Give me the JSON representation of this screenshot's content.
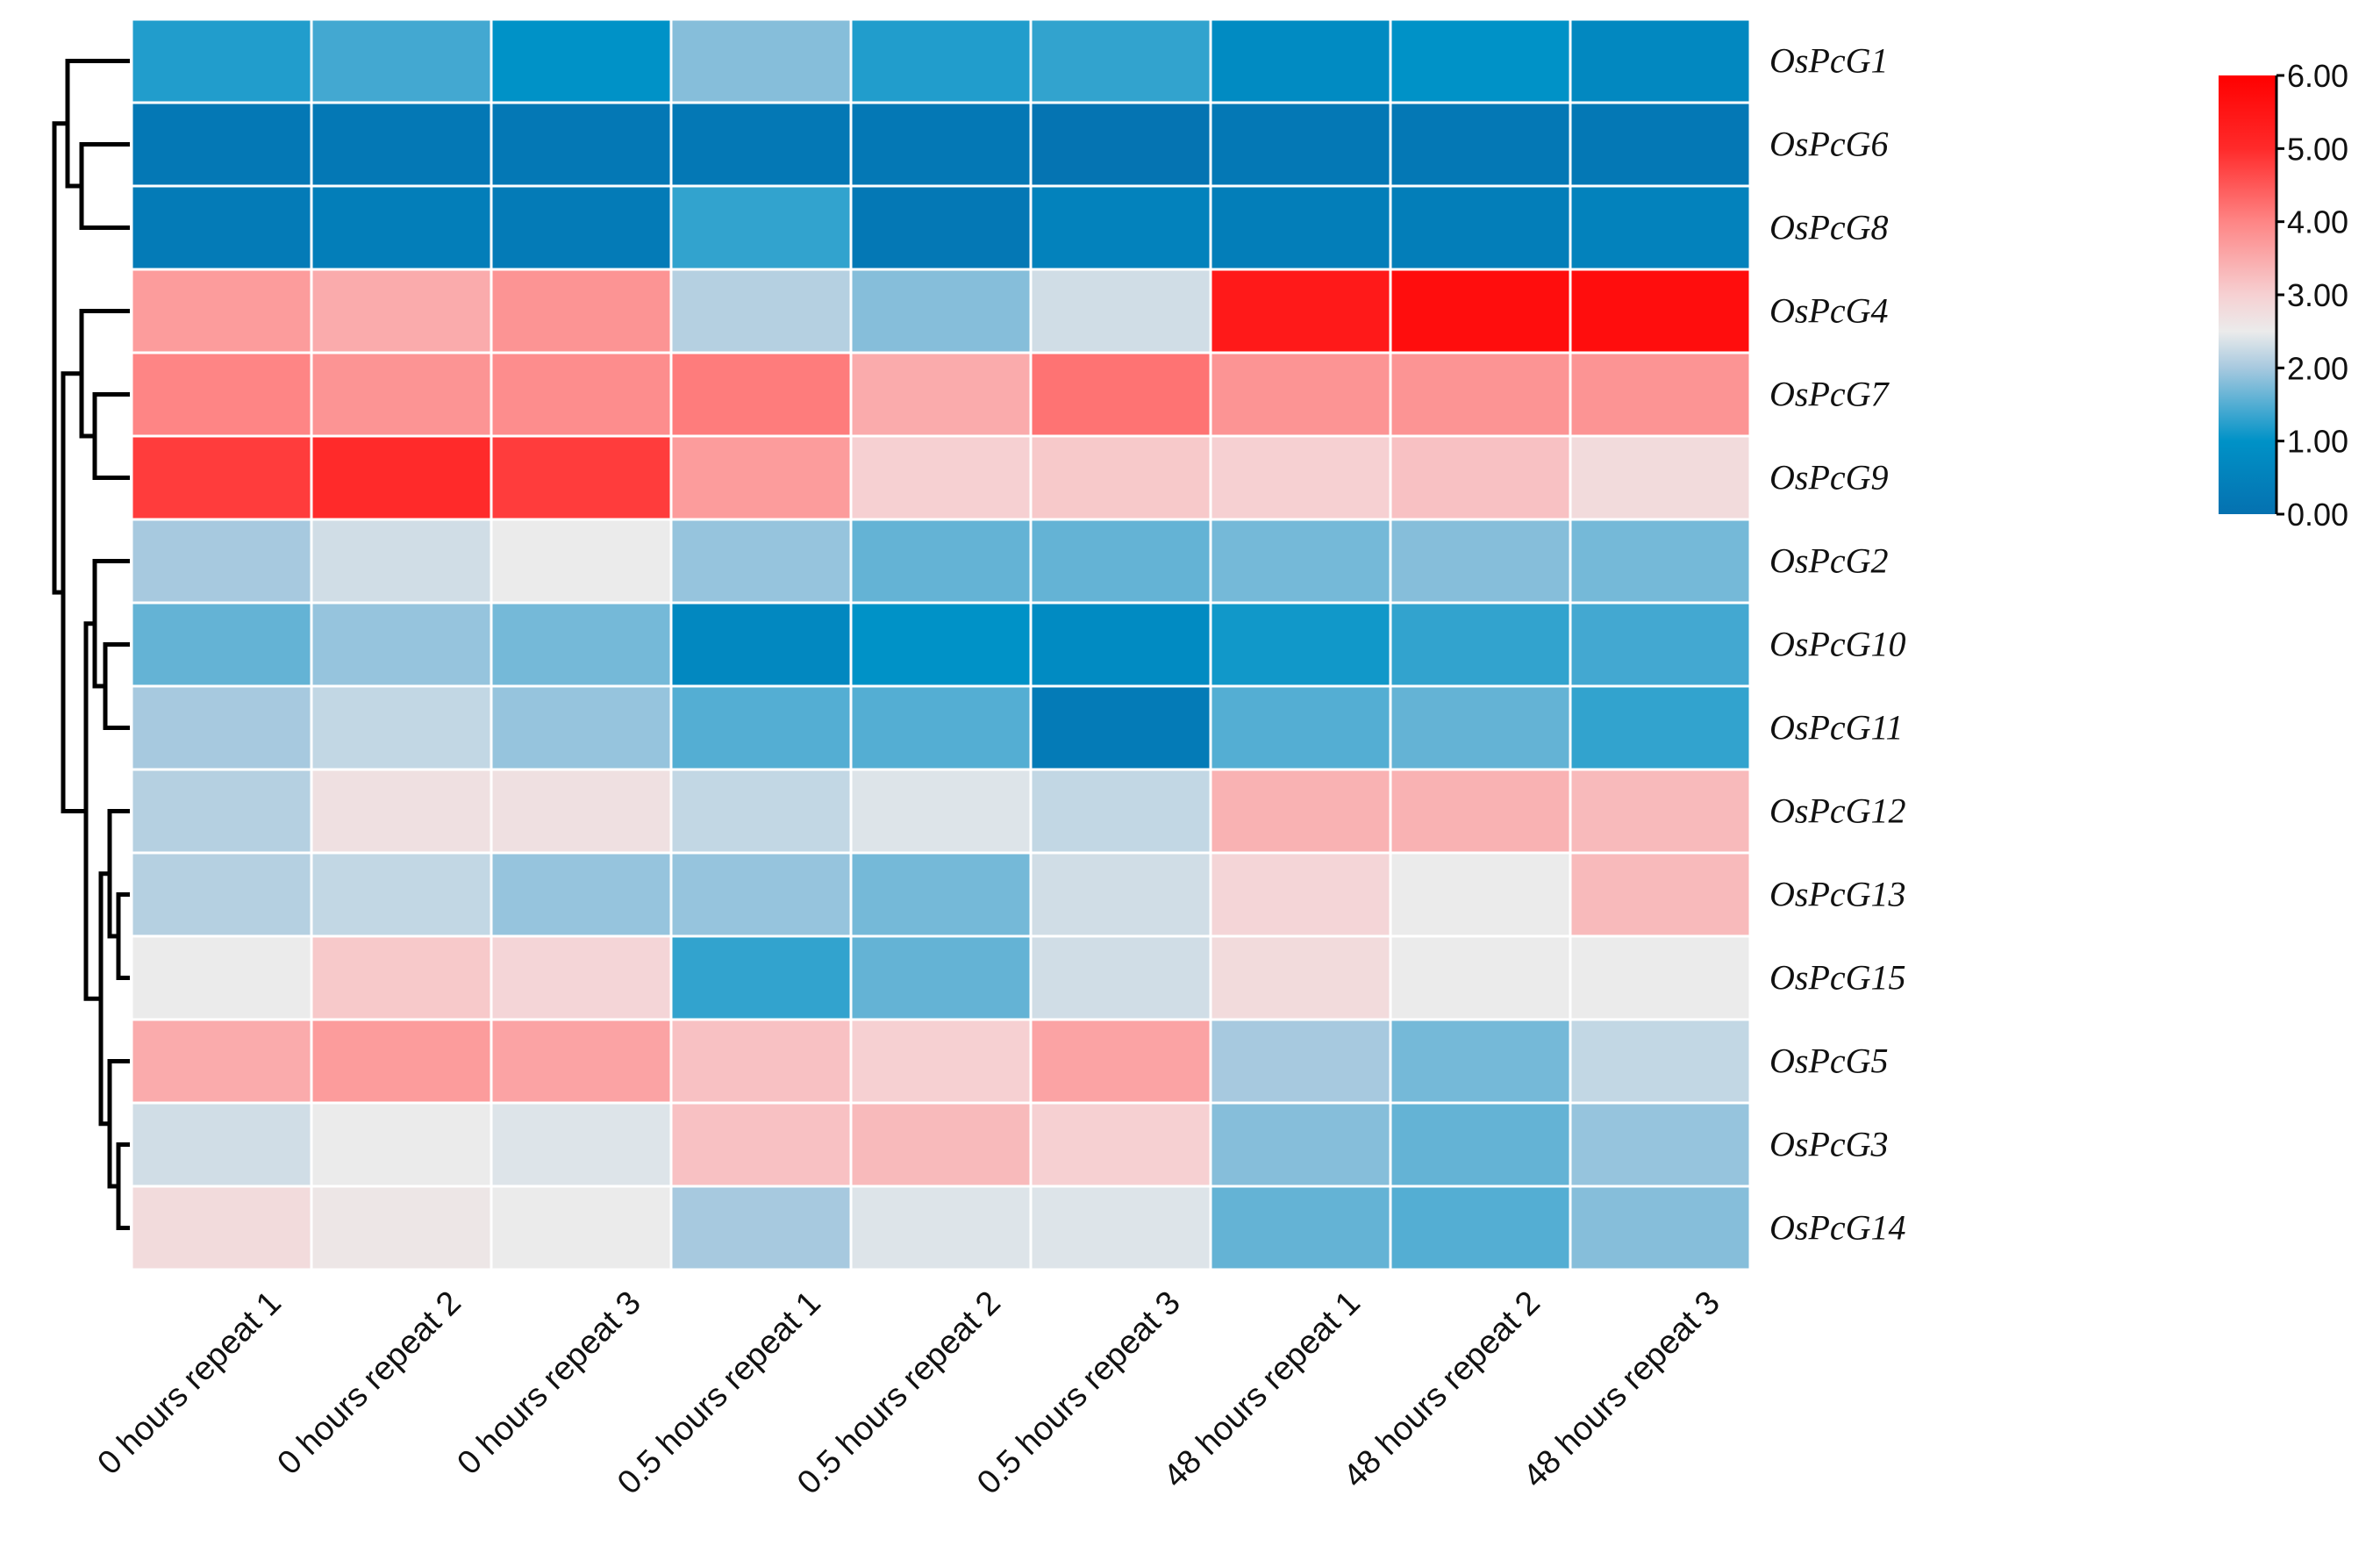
{
  "chart_data": {
    "type": "heatmap",
    "title": "",
    "columns": [
      "0 hours repeat 1",
      "0 hours repeat 2",
      "0 hours repeat 3",
      "0.5 hours repeat 1",
      "0.5 hours repeat 2",
      "0.5 hours repeat 3",
      "48 hours repeat 1",
      "48 hours repeat 2",
      "48 hours repeat 3"
    ],
    "rows": [
      "OsPcG1",
      "OsPcG6",
      "OsPcG8",
      "OsPcG4",
      "OsPcG7",
      "OsPcG9",
      "OsPcG2",
      "OsPcG10",
      "OsPcG11",
      "OsPcG12",
      "OsPcG13",
      "OsPcG15",
      "OsPcG5",
      "OsPcG3",
      "OsPcG14"
    ],
    "values": [
      [
        1.2,
        1.4,
        1.0,
        1.8,
        1.2,
        1.3,
        0.8,
        1.0,
        0.7
      ],
      [
        0.2,
        0.2,
        0.2,
        0.2,
        0.2,
        0.1,
        0.2,
        0.2,
        0.2
      ],
      [
        0.3,
        0.4,
        0.3,
        1.3,
        0.2,
        0.5,
        0.4,
        0.4,
        0.5
      ],
      [
        3.7,
        3.5,
        3.8,
        2.1,
        1.8,
        2.3,
        5.4,
        5.7,
        5.7
      ],
      [
        4.0,
        3.8,
        3.9,
        4.1,
        3.5,
        4.2,
        3.8,
        3.8,
        3.8
      ],
      [
        4.8,
        5.0,
        4.8,
        3.7,
        3.0,
        3.1,
        3.0,
        3.2,
        2.8
      ],
      [
        2.0,
        2.3,
        2.5,
        1.9,
        1.6,
        1.6,
        1.7,
        1.8,
        1.7
      ],
      [
        1.6,
        1.9,
        1.7,
        0.7,
        1.0,
        0.8,
        1.1,
        1.3,
        1.4
      ],
      [
        2.0,
        2.2,
        1.9,
        1.5,
        1.5,
        0.3,
        1.5,
        1.6,
        1.3
      ],
      [
        2.1,
        2.7,
        2.7,
        2.2,
        2.4,
        2.2,
        3.4,
        3.4,
        3.3
      ],
      [
        2.1,
        2.2,
        1.9,
        1.9,
        1.7,
        2.3,
        2.9,
        2.5,
        3.3
      ],
      [
        2.5,
        3.1,
        2.9,
        1.3,
        1.6,
        2.3,
        2.8,
        2.5,
        2.5
      ],
      [
        3.5,
        3.7,
        3.6,
        3.2,
        3.0,
        3.6,
        2.0,
        1.7,
        2.2
      ],
      [
        2.3,
        2.5,
        2.4,
        3.2,
        3.3,
        3.0,
        1.8,
        1.6,
        1.9
      ],
      [
        2.8,
        2.6,
        2.5,
        2.0,
        2.4,
        2.4,
        1.6,
        1.5,
        1.8
      ]
    ],
    "colorbar": {
      "range": [
        0,
        6
      ],
      "ticks": [
        "0.00",
        "1.00",
        "2.00",
        "3.00",
        "4.00",
        "5.00",
        "6.00"
      ],
      "stops": [
        {
          "v": 0,
          "c": "#0571b0"
        },
        {
          "v": 1,
          "c": "#0092c7"
        },
        {
          "v": 2,
          "c": "#a7c9df"
        },
        {
          "v": 2.5,
          "c": "#ebebeb"
        },
        {
          "v": 3,
          "c": "#f6d0d2"
        },
        {
          "v": 4,
          "c": "#fe8585"
        },
        {
          "v": 5,
          "c": "#ff2a2a"
        },
        {
          "v": 6,
          "c": "#ff0000"
        }
      ]
    },
    "row_dendrogram": true
  }
}
